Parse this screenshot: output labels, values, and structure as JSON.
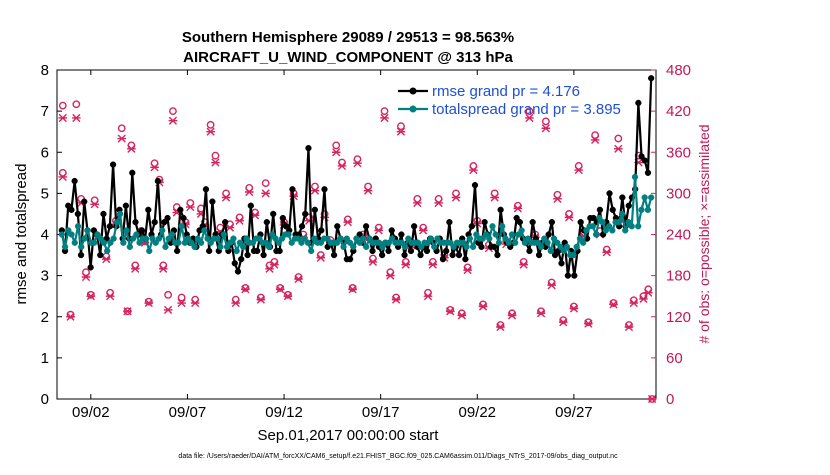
{
  "chart_data": {
    "type": "line",
    "title": "Southern Hemisphere 29089 / 29513 = 98.563%",
    "subtitle": "AIRCRAFT_U_WIND_COMPONENT @ 313 hPa",
    "xlabel": "Sep.01,2017 00:00:00 start",
    "ylabel": "rmse and totalspread",
    "ylabel_right": "# of obs: o=possible; ×=assimilated",
    "footer": "data file: /Users/raeder/DAI/ATM_forcXX/CAM6_setup/f.e21.FHIST_BGC.f09_025.CAM6assim.011/Diags_NTrS_2017-09/obs_diag_output.nc",
    "xlim": [
      0.25,
      31.25
    ],
    "ylim": [
      0,
      8
    ],
    "ylim_right": [
      0,
      480
    ],
    "x_ticks": [
      {
        "value": 2,
        "label": "09/02"
      },
      {
        "value": 7,
        "label": "09/07"
      },
      {
        "value": 12,
        "label": "09/12"
      },
      {
        "value": 17,
        "label": "09/17"
      },
      {
        "value": 22,
        "label": "09/22"
      },
      {
        "value": 27,
        "label": "09/27"
      }
    ],
    "y_ticks": [
      "0",
      "1",
      "2",
      "3",
      "4",
      "5",
      "6",
      "7",
      "8"
    ],
    "y_ticks_right": [
      "0",
      "60",
      "120",
      "180",
      "240",
      "300",
      "360",
      "420",
      "480"
    ],
    "colors": {
      "rmse": "#000000",
      "spread": "#008080",
      "obs": "#d6245e",
      "legend_text": "#1f4fd6"
    },
    "series": [
      {
        "name": "rmse grand pr = 4.176",
        "axis": "left",
        "marker": "filled-circle",
        "values": [
          4.1,
          3.6,
          4.7,
          4.6,
          5.3,
          4.5,
          3.5,
          4.8,
          4.1,
          3.2,
          4.1,
          4.0,
          3.5,
          4.5,
          3.9,
          4.2,
          5.7,
          4.2,
          4.6,
          3.9,
          4.7,
          3.9,
          5.5,
          4.3,
          4.0,
          4.1,
          3.9,
          4.6,
          4.0,
          4.3,
          5.3,
          4.0,
          4.3,
          4.4,
          3.8,
          4.1,
          3.6,
          4.6,
          4.4,
          4.0,
          3.8,
          3.9,
          3.7,
          4.1,
          4.2,
          5.1,
          3.6,
          4.8,
          4.0,
          3.6,
          4.0,
          4.3,
          3.6,
          3.8,
          3.3,
          3.1,
          3.4,
          3.9,
          3.5,
          4.7,
          3.6,
          3.6,
          4.0,
          3.5,
          4.3,
          3.7,
          4.5,
          3.6,
          3.6,
          4.4,
          4.2,
          4.1,
          5.1,
          4.0,
          4.0,
          4.2,
          4.5,
          6.1,
          3.8,
          4.6,
          3.9,
          4.1,
          5.1,
          3.7,
          3.8,
          3.5,
          4.2,
          3.9,
          3.8,
          3.4,
          3.4,
          3.6,
          3.9,
          4.0,
          3.8,
          4.2,
          3.9,
          3.6,
          3.9,
          3.7,
          3.5,
          3.8,
          3.6,
          4.1,
          3.9,
          3.7,
          4.0,
          3.5,
          3.8,
          3.6,
          4.2,
          3.7,
          3.5,
          3.7,
          3.6,
          3.9,
          3.8,
          3.6,
          3.9,
          3.4,
          3.6,
          4.3,
          3.5,
          3.7,
          3.5,
          3.9,
          3.4,
          4.0,
          4.2,
          5.2,
          3.8,
          3.7,
          4.3,
          4.0,
          3.7,
          3.7,
          3.5,
          4.6,
          4.0,
          3.8,
          3.7,
          3.8,
          4.4,
          4.3,
          3.9,
          3.8,
          3.6,
          4.3,
          3.9,
          3.5,
          3.8,
          3.7,
          4.0,
          4.3,
          3.5,
          3.6,
          3.3,
          3.8,
          3.0,
          3.6,
          3.0,
          3.6,
          4.3,
          4.1,
          3.9,
          4.4,
          4.4,
          4.3,
          4.6,
          4.0,
          4.3,
          5.0,
          4.6,
          4.4,
          4.2,
          4.9,
          4.2,
          4.7,
          4.9,
          5.1,
          7.2,
          5.9,
          5.8,
          5.5,
          7.8
        ]
      },
      {
        "name": "totalspread grand pr = 3.895",
        "axis": "left",
        "marker": "filled-circle",
        "values": [
          4.0,
          3.7,
          4.1,
          4.0,
          3.8,
          4.2,
          3.7,
          3.9,
          4.1,
          3.8,
          3.8,
          4.0,
          3.9,
          3.8,
          3.6,
          3.8,
          3.9,
          4.3,
          4.5,
          3.8,
          4.1,
          3.7,
          3.9,
          4.0,
          3.8,
          3.9,
          3.9,
          3.6,
          3.9,
          3.8,
          3.9,
          4.1,
          3.7,
          3.9,
          4.0,
          3.8,
          3.8,
          4.2,
          3.8,
          3.9,
          3.8,
          3.7,
          3.9,
          3.8,
          4.1,
          3.9,
          3.8,
          3.9,
          3.9,
          3.7,
          4.0,
          3.7,
          3.8,
          3.9,
          3.6,
          3.8,
          3.7,
          3.9,
          3.8,
          3.8,
          3.9,
          3.9,
          3.8,
          3.8,
          3.7,
          4.0,
          3.9,
          3.8,
          3.9,
          4.0,
          4.0,
          3.8,
          3.9,
          3.9,
          3.8,
          3.9,
          3.8,
          3.6,
          3.9,
          3.8,
          3.8,
          3.9,
          3.9,
          3.8,
          3.8,
          3.8,
          3.9,
          3.7,
          3.9,
          3.8,
          3.7,
          3.9,
          3.8,
          3.9,
          3.7,
          3.9,
          3.8,
          3.8,
          3.8,
          3.7,
          3.8,
          3.8,
          3.9,
          3.8,
          3.8,
          3.8,
          3.7,
          3.9,
          3.8,
          3.8,
          3.8,
          3.7,
          3.8,
          3.8,
          3.9,
          3.7,
          3.9,
          3.8,
          3.8,
          3.8,
          3.8,
          3.7,
          3.8,
          3.8,
          3.8,
          3.7,
          3.9,
          3.7,
          4.0,
          3.9,
          3.9,
          4.0,
          3.9,
          4.2,
          4.0,
          3.8,
          4.2,
          3.9,
          3.8,
          4.0,
          3.8,
          4.0,
          4.1,
          3.8,
          3.9,
          3.8,
          3.8,
          3.8,
          3.7,
          3.9,
          3.8,
          3.6,
          3.9,
          3.8,
          3.7,
          3.6,
          3.7,
          3.5,
          3.5,
          3.7,
          3.9,
          3.8,
          4.1,
          4.2,
          4.2,
          4.0,
          4.4,
          4.3,
          4.1,
          4.2,
          4.1,
          4.3,
          4.3,
          4.5,
          4.1,
          4.3,
          4.2,
          5.4,
          4.2,
          4.6,
          4.9,
          4.6,
          4.9
        ]
      }
    ],
    "obs_possible": [
      {
        "x": 0.55,
        "y": 330
      },
      {
        "x": 0.55,
        "y": 428
      },
      {
        "x": 0.95,
        "y": 123
      },
      {
        "x": 1.25,
        "y": 430
      },
      {
        "x": 1.5,
        "y": 292
      },
      {
        "x": 1.75,
        "y": 185
      },
      {
        "x": 2.0,
        "y": 152
      },
      {
        "x": 2.2,
        "y": 290
      },
      {
        "x": 2.8,
        "y": 208
      },
      {
        "x": 3.0,
        "y": 155
      },
      {
        "x": 3.3,
        "y": 260
      },
      {
        "x": 3.6,
        "y": 395
      },
      {
        "x": 3.9,
        "y": 128
      },
      {
        "x": 4.1,
        "y": 370
      },
      {
        "x": 4.3,
        "y": 195
      },
      {
        "x": 4.6,
        "y": 245
      },
      {
        "x": 4.8,
        "y": 230
      },
      {
        "x": 5.0,
        "y": 142
      },
      {
        "x": 5.3,
        "y": 344
      },
      {
        "x": 5.55,
        "y": 320
      },
      {
        "x": 5.75,
        "y": 195
      },
      {
        "x": 6.0,
        "y": 152
      },
      {
        "x": 6.25,
        "y": 420
      },
      {
        "x": 6.45,
        "y": 280
      },
      {
        "x": 6.7,
        "y": 148
      },
      {
        "x": 6.9,
        "y": 258
      },
      {
        "x": 7.15,
        "y": 286
      },
      {
        "x": 7.4,
        "y": 145
      },
      {
        "x": 7.7,
        "y": 278
      },
      {
        "x": 7.9,
        "y": 258
      },
      {
        "x": 8.2,
        "y": 400
      },
      {
        "x": 8.45,
        "y": 355
      },
      {
        "x": 8.7,
        "y": 250
      },
      {
        "x": 9.0,
        "y": 300
      },
      {
        "x": 9.2,
        "y": 255
      },
      {
        "x": 9.5,
        "y": 145
      },
      {
        "x": 9.7,
        "y": 265
      },
      {
        "x": 10.0,
        "y": 162
      },
      {
        "x": 10.2,
        "y": 308
      },
      {
        "x": 10.5,
        "y": 272
      },
      {
        "x": 10.8,
        "y": 148
      },
      {
        "x": 11.05,
        "y": 315
      },
      {
        "x": 11.25,
        "y": 195
      },
      {
        "x": 11.5,
        "y": 200
      },
      {
        "x": 11.8,
        "y": 162
      },
      {
        "x": 12.0,
        "y": 258
      },
      {
        "x": 12.2,
        "y": 152
      },
      {
        "x": 12.5,
        "y": 300
      },
      {
        "x": 12.75,
        "y": 178
      },
      {
        "x": 13.0,
        "y": 240
      },
      {
        "x": 13.3,
        "y": 265
      },
      {
        "x": 13.6,
        "y": 310
      },
      {
        "x": 13.9,
        "y": 210
      },
      {
        "x": 14.1,
        "y": 270
      },
      {
        "x": 14.4,
        "y": 232
      },
      {
        "x": 14.7,
        "y": 370
      },
      {
        "x": 15.0,
        "y": 345
      },
      {
        "x": 15.3,
        "y": 262
      },
      {
        "x": 15.55,
        "y": 162
      },
      {
        "x": 15.8,
        "y": 350
      },
      {
        "x": 16.1,
        "y": 240
      },
      {
        "x": 16.35,
        "y": 310
      },
      {
        "x": 16.6,
        "y": 205
      },
      {
        "x": 16.9,
        "y": 250
      },
      {
        "x": 17.2,
        "y": 420
      },
      {
        "x": 17.5,
        "y": 185
      },
      {
        "x": 17.8,
        "y": 148
      },
      {
        "x": 18.05,
        "y": 398
      },
      {
        "x": 18.3,
        "y": 200
      },
      {
        "x": 18.6,
        "y": 228
      },
      {
        "x": 18.9,
        "y": 292
      },
      {
        "x": 19.2,
        "y": 250
      },
      {
        "x": 19.45,
        "y": 155
      },
      {
        "x": 19.7,
        "y": 200
      },
      {
        "x": 20.0,
        "y": 292
      },
      {
        "x": 20.3,
        "y": 210
      },
      {
        "x": 20.6,
        "y": 130
      },
      {
        "x": 20.9,
        "y": 300
      },
      {
        "x": 21.2,
        "y": 125
      },
      {
        "x": 21.5,
        "y": 192
      },
      {
        "x": 21.8,
        "y": 340
      },
      {
        "x": 22.0,
        "y": 260
      },
      {
        "x": 22.3,
        "y": 138
      },
      {
        "x": 22.6,
        "y": 225
      },
      {
        "x": 22.9,
        "y": 300
      },
      {
        "x": 23.2,
        "y": 108
      },
      {
        "x": 23.5,
        "y": 230
      },
      {
        "x": 23.8,
        "y": 125
      },
      {
        "x": 24.1,
        "y": 282
      },
      {
        "x": 24.4,
        "y": 200
      },
      {
        "x": 24.7,
        "y": 420
      },
      {
        "x": 25.0,
        "y": 240
      },
      {
        "x": 25.3,
        "y": 128
      },
      {
        "x": 25.55,
        "y": 405
      },
      {
        "x": 25.85,
        "y": 170
      },
      {
        "x": 26.15,
        "y": 298
      },
      {
        "x": 26.45,
        "y": 115
      },
      {
        "x": 26.75,
        "y": 270
      },
      {
        "x": 27.0,
        "y": 135
      },
      {
        "x": 27.25,
        "y": 340
      },
      {
        "x": 27.5,
        "y": 243
      },
      {
        "x": 27.75,
        "y": 112
      },
      {
        "x": 28.1,
        "y": 385
      },
      {
        "x": 28.35,
        "y": 245
      },
      {
        "x": 28.7,
        "y": 218
      },
      {
        "x": 29.05,
        "y": 140
      },
      {
        "x": 29.3,
        "y": 380
      },
      {
        "x": 29.55,
        "y": 265
      },
      {
        "x": 29.85,
        "y": 108
      },
      {
        "x": 30.1,
        "y": 144
      },
      {
        "x": 30.35,
        "y": 355
      },
      {
        "x": 30.6,
        "y": 150
      },
      {
        "x": 30.85,
        "y": 160
      },
      {
        "x": 31.05,
        "y": 0
      }
    ],
    "obs_assimilated": [
      {
        "x": 0.55,
        "y": 324
      },
      {
        "x": 0.55,
        "y": 410
      },
      {
        "x": 0.95,
        "y": 120
      },
      {
        "x": 1.25,
        "y": 410
      },
      {
        "x": 1.5,
        "y": 286
      },
      {
        "x": 1.75,
        "y": 178
      },
      {
        "x": 2.0,
        "y": 150
      },
      {
        "x": 2.2,
        "y": 284
      },
      {
        "x": 2.8,
        "y": 204
      },
      {
        "x": 3.0,
        "y": 150
      },
      {
        "x": 3.3,
        "y": 255
      },
      {
        "x": 3.6,
        "y": 380
      },
      {
        "x": 3.9,
        "y": 128
      },
      {
        "x": 4.1,
        "y": 365
      },
      {
        "x": 4.3,
        "y": 190
      },
      {
        "x": 4.6,
        "y": 240
      },
      {
        "x": 4.8,
        "y": 228
      },
      {
        "x": 5.0,
        "y": 140
      },
      {
        "x": 5.3,
        "y": 338
      },
      {
        "x": 5.55,
        "y": 316
      },
      {
        "x": 5.75,
        "y": 190
      },
      {
        "x": 6.0,
        "y": 130
      },
      {
        "x": 6.25,
        "y": 406
      },
      {
        "x": 6.45,
        "y": 272
      },
      {
        "x": 6.7,
        "y": 140
      },
      {
        "x": 6.9,
        "y": 255
      },
      {
        "x": 7.15,
        "y": 280
      },
      {
        "x": 7.4,
        "y": 140
      },
      {
        "x": 7.7,
        "y": 270
      },
      {
        "x": 7.9,
        "y": 254
      },
      {
        "x": 8.2,
        "y": 390
      },
      {
        "x": 8.45,
        "y": 345
      },
      {
        "x": 8.7,
        "y": 244
      },
      {
        "x": 9.0,
        "y": 294
      },
      {
        "x": 9.2,
        "y": 250
      },
      {
        "x": 9.5,
        "y": 140
      },
      {
        "x": 9.7,
        "y": 260
      },
      {
        "x": 10.0,
        "y": 160
      },
      {
        "x": 10.2,
        "y": 302
      },
      {
        "x": 10.5,
        "y": 268
      },
      {
        "x": 10.8,
        "y": 145
      },
      {
        "x": 11.05,
        "y": 300
      },
      {
        "x": 11.25,
        "y": 190
      },
      {
        "x": 11.5,
        "y": 196
      },
      {
        "x": 11.8,
        "y": 160
      },
      {
        "x": 12.0,
        "y": 254
      },
      {
        "x": 12.2,
        "y": 150
      },
      {
        "x": 12.5,
        "y": 296
      },
      {
        "x": 12.75,
        "y": 175
      },
      {
        "x": 13.0,
        "y": 236
      },
      {
        "x": 13.3,
        "y": 260
      },
      {
        "x": 13.6,
        "y": 304
      },
      {
        "x": 13.9,
        "y": 206
      },
      {
        "x": 14.1,
        "y": 265
      },
      {
        "x": 14.4,
        "y": 228
      },
      {
        "x": 14.7,
        "y": 360
      },
      {
        "x": 15.0,
        "y": 340
      },
      {
        "x": 15.3,
        "y": 258
      },
      {
        "x": 15.55,
        "y": 160
      },
      {
        "x": 15.8,
        "y": 344
      },
      {
        "x": 16.1,
        "y": 236
      },
      {
        "x": 16.35,
        "y": 304
      },
      {
        "x": 16.6,
        "y": 200
      },
      {
        "x": 16.9,
        "y": 246
      },
      {
        "x": 17.2,
        "y": 410
      },
      {
        "x": 17.5,
        "y": 180
      },
      {
        "x": 17.8,
        "y": 145
      },
      {
        "x": 18.05,
        "y": 390
      },
      {
        "x": 18.3,
        "y": 196
      },
      {
        "x": 18.6,
        "y": 224
      },
      {
        "x": 18.9,
        "y": 286
      },
      {
        "x": 19.2,
        "y": 246
      },
      {
        "x": 19.45,
        "y": 150
      },
      {
        "x": 19.7,
        "y": 196
      },
      {
        "x": 20.0,
        "y": 286
      },
      {
        "x": 20.3,
        "y": 206
      },
      {
        "x": 20.6,
        "y": 128
      },
      {
        "x": 20.9,
        "y": 294
      },
      {
        "x": 21.2,
        "y": 122
      },
      {
        "x": 21.5,
        "y": 188
      },
      {
        "x": 21.8,
        "y": 334
      },
      {
        "x": 22.0,
        "y": 256
      },
      {
        "x": 22.3,
        "y": 135
      },
      {
        "x": 22.6,
        "y": 220
      },
      {
        "x": 22.9,
        "y": 294
      },
      {
        "x": 23.2,
        "y": 105
      },
      {
        "x": 23.5,
        "y": 226
      },
      {
        "x": 23.8,
        "y": 122
      },
      {
        "x": 24.1,
        "y": 278
      },
      {
        "x": 24.4,
        "y": 196
      },
      {
        "x": 24.7,
        "y": 410
      },
      {
        "x": 25.0,
        "y": 236
      },
      {
        "x": 25.3,
        "y": 125
      },
      {
        "x": 25.55,
        "y": 395
      },
      {
        "x": 25.85,
        "y": 166
      },
      {
        "x": 26.15,
        "y": 292
      },
      {
        "x": 26.45,
        "y": 112
      },
      {
        "x": 26.75,
        "y": 265
      },
      {
        "x": 27.0,
        "y": 132
      },
      {
        "x": 27.25,
        "y": 334
      },
      {
        "x": 27.5,
        "y": 238
      },
      {
        "x": 27.75,
        "y": 110
      },
      {
        "x": 28.1,
        "y": 378
      },
      {
        "x": 28.35,
        "y": 240
      },
      {
        "x": 28.7,
        "y": 214
      },
      {
        "x": 29.05,
        "y": 138
      },
      {
        "x": 29.3,
        "y": 365
      },
      {
        "x": 29.55,
        "y": 260
      },
      {
        "x": 29.85,
        "y": 105
      },
      {
        "x": 30.1,
        "y": 140
      },
      {
        "x": 30.35,
        "y": 345
      },
      {
        "x": 30.6,
        "y": 146
      },
      {
        "x": 30.85,
        "y": 155
      },
      {
        "x": 31.05,
        "y": 0
      }
    ],
    "legend": {
      "placement": "top-right",
      "entries": [
        "rmse grand pr = 4.176",
        "totalspread grand pr = 3.895"
      ]
    }
  }
}
